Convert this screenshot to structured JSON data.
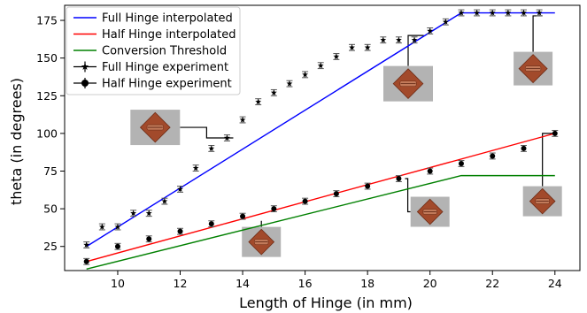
{
  "chart_data": {
    "type": "line",
    "xlabel": "Length of Hinge (in mm)",
    "ylabel": "theta (in degrees)",
    "xlim": [
      8.3,
      24.8
    ],
    "ylim": [
      9,
      185
    ],
    "xticks": [
      10,
      12,
      14,
      16,
      18,
      20,
      22,
      24
    ],
    "yticks": [
      25,
      50,
      75,
      100,
      125,
      150,
      175
    ],
    "grid": false,
    "legend_position": "top-left",
    "series": [
      {
        "name": "Full Hinge interpolated",
        "kind": "line",
        "color": "#0000ff",
        "x": [
          9,
          21,
          24
        ],
        "y": [
          25,
          180,
          180
        ]
      },
      {
        "name": "Half Hinge interpolated",
        "kind": "line",
        "color": "#ff0000",
        "x": [
          9,
          24
        ],
        "y": [
          15,
          100
        ]
      },
      {
        "name": "Conversion Threshold",
        "kind": "line",
        "color": "#008000",
        "x": [
          9,
          21,
          24
        ],
        "y": [
          10,
          72,
          72
        ]
      },
      {
        "name": "Full Hinge experiment",
        "kind": "errorbar",
        "marker": "star",
        "color": "#000000",
        "err": 2,
        "x": [
          9,
          9.5,
          10,
          10.5,
          11,
          11.5,
          12,
          12.5,
          13,
          13.5,
          14,
          14.5,
          15,
          15.5,
          16,
          16.5,
          17,
          17.5,
          18,
          18.5,
          19,
          19.5,
          20,
          20.5,
          21,
          21.5,
          22,
          22.5,
          23,
          23.5
        ],
        "y": [
          26,
          38,
          38,
          47,
          47,
          55,
          63,
          77,
          90,
          97,
          109,
          121,
          127,
          133,
          139,
          145,
          151,
          157,
          157,
          162,
          162,
          162,
          168,
          174,
          180,
          180,
          180,
          180,
          180,
          180
        ]
      },
      {
        "name": "Half Hinge experiment",
        "kind": "errorbar",
        "marker": "circle",
        "color": "#000000",
        "err": 2,
        "x": [
          9,
          10,
          11,
          12,
          13,
          14,
          15,
          16,
          17,
          18,
          19,
          20,
          21,
          22,
          23,
          24
        ],
        "y": [
          15,
          25,
          30,
          35,
          40,
          45,
          50,
          55,
          60,
          65,
          70,
          75,
          80,
          85,
          90,
          100
        ]
      }
    ],
    "annotations": [
      {
        "anchor_x": 13.7,
        "anchor_y": 97,
        "img_x": 11.2,
        "img_y": 104
      },
      {
        "anchor_x": 14.6,
        "anchor_y": 42,
        "img_x": 14.6,
        "img_y": 28
      },
      {
        "anchor_x": 19.8,
        "anchor_y": 165,
        "img_x": 19.3,
        "img_y": 133
      },
      {
        "anchor_x": 19.2,
        "anchor_y": 70,
        "img_x": 20,
        "img_y": 48
      },
      {
        "anchor_x": 23.6,
        "anchor_y": 178,
        "img_x": 23.3,
        "img_y": 143
      },
      {
        "anchor_x": 24,
        "anchor_y": 100,
        "img_x": 23.6,
        "img_y": 55
      }
    ]
  }
}
